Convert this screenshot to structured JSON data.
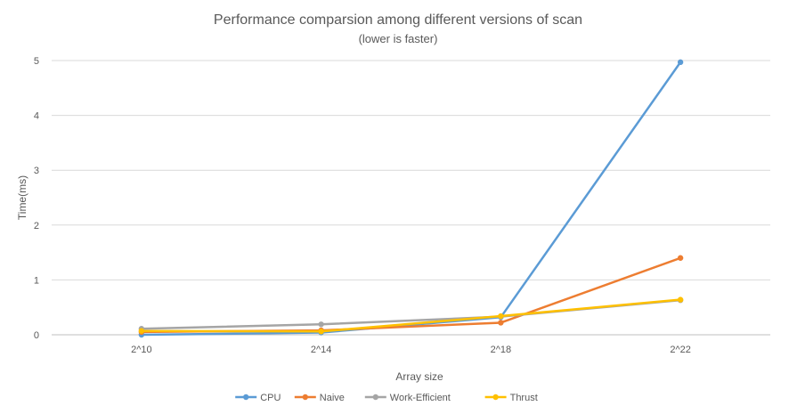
{
  "chart_data": {
    "type": "line",
    "title": "Performance comparsion among different versions of scan",
    "subtitle": "(lower is faster)",
    "xlabel": "Array size",
    "ylabel": "Time(ms)",
    "categories": [
      "2^10",
      "2^14",
      "2^18",
      "2^22"
    ],
    "ylim": [
      0,
      5
    ],
    "yticks": [
      0,
      1,
      2,
      3,
      4,
      5
    ],
    "grid": true,
    "legend_position": "bottom",
    "series": [
      {
        "name": "CPU",
        "color": "#5B9BD5",
        "values": [
          0.0,
          0.04,
          0.32,
          4.97
        ]
      },
      {
        "name": "Naive",
        "color": "#ED7D31",
        "values": [
          0.05,
          0.08,
          0.22,
          1.4
        ]
      },
      {
        "name": "Work-Efficient",
        "color": "#A5A5A5",
        "values": [
          0.11,
          0.19,
          0.33,
          0.63
        ]
      },
      {
        "name": "Thrust",
        "color": "#FFC000",
        "values": [
          0.07,
          0.06,
          0.34,
          0.64
        ]
      }
    ]
  }
}
